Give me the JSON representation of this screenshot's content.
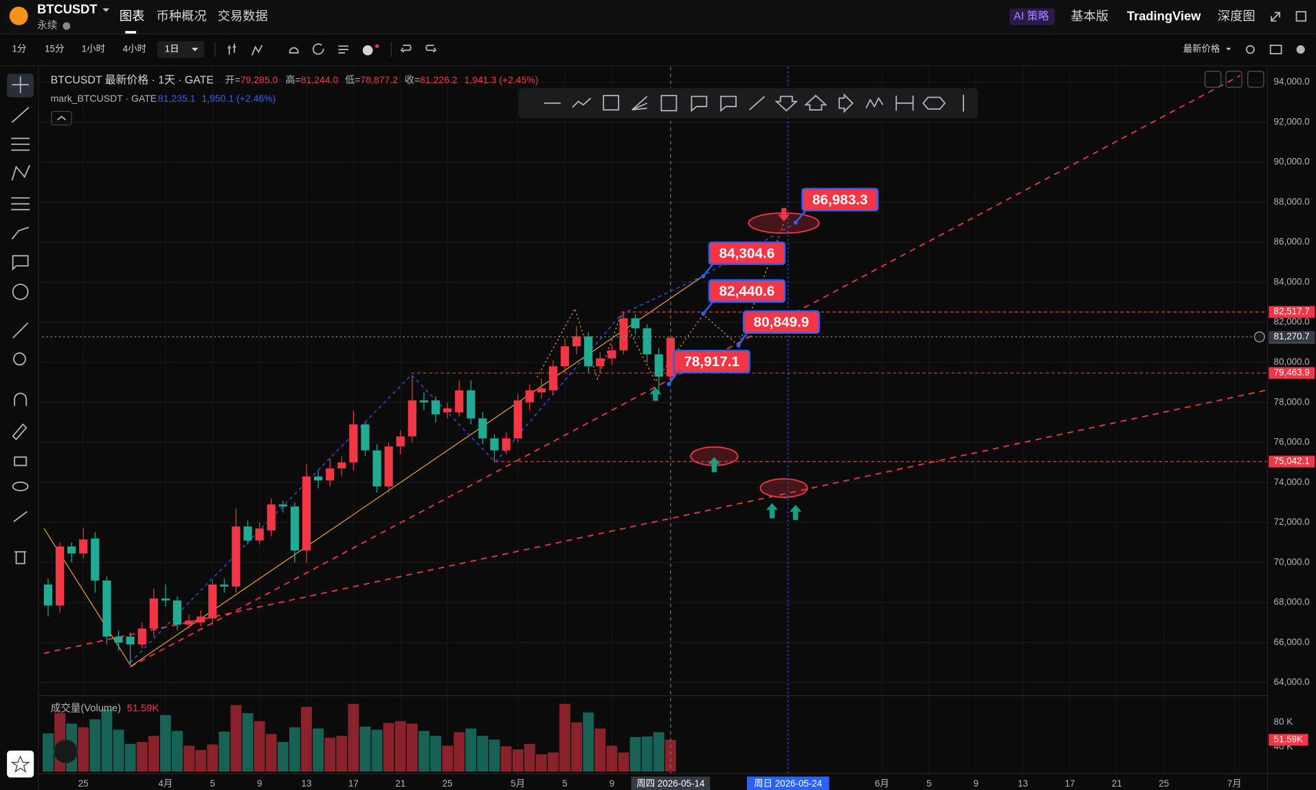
{
  "header": {
    "symbol": "BTCUSDT",
    "contract": "永续",
    "tabs": [
      "图表",
      "币种概况",
      "交易数据"
    ],
    "right": [
      "AI 策略",
      "基本版",
      "TradingView",
      "深度图"
    ]
  },
  "toolbar": {
    "intervals": [
      "1分",
      "15分",
      "1小时",
      "4小时",
      "1日"
    ],
    "price_type": "最新价格"
  },
  "legend": {
    "title": "BTCUSDT 最新价格 · 1天 · GATE",
    "items": [
      {
        "label": "开=",
        "value": "79,285.0"
      },
      {
        "label": "高=",
        "value": "81,244.0"
      },
      {
        "label": "低=",
        "value": "78,877.2"
      },
      {
        "label": "收=",
        "value": "81,226.2"
      }
    ],
    "change": "1,941.3 (+2.45%)",
    "mark_title": "mark_BTCUSDT · GATE",
    "mark_value": "81,235.1",
    "mark_change": "1,950.1 (+2.46%)"
  },
  "chart_data": {
    "type": "candlestick",
    "title": "BTCUSDT 最新价格 · 1天 · GATE",
    "x": [
      "2026-03-22",
      "2026-03-23",
      "2026-03-24",
      "2026-03-25",
      "2026-03-26",
      "2026-03-27",
      "2026-03-28",
      "2026-03-29",
      "2026-03-30",
      "2026-03-31",
      "2026-04-01",
      "2026-04-02",
      "2026-04-03",
      "2026-04-04",
      "2026-04-05",
      "2026-04-06",
      "2026-04-07",
      "2026-04-08",
      "2026-04-09",
      "2026-04-10",
      "2026-04-11",
      "2026-04-12",
      "2026-04-13",
      "2026-04-14",
      "2026-04-15",
      "2026-04-16",
      "2026-04-17",
      "2026-04-18",
      "2026-04-19",
      "2026-04-20",
      "2026-04-21",
      "2026-04-22",
      "2026-04-23",
      "2026-04-24",
      "2026-04-25",
      "2026-04-26",
      "2026-04-27",
      "2026-04-28",
      "2026-04-29",
      "2026-04-30",
      "2026-05-01",
      "2026-05-02",
      "2026-05-03",
      "2026-05-04",
      "2026-05-05",
      "2026-05-06",
      "2026-05-07",
      "2026-05-08",
      "2026-05-09",
      "2026-05-10",
      "2026-05-11",
      "2026-05-12",
      "2026-05-13",
      "2026-05-14"
    ],
    "open": [
      68900,
      67850,
      70800,
      70450,
      71200,
      69100,
      66300,
      66300,
      65900,
      66700,
      68200,
      68100,
      66900,
      67000,
      67200,
      68900,
      68800,
      71800,
      71100,
      71600,
      72900,
      72800,
      70600,
      74300,
      74100,
      74700,
      75000,
      76900,
      75600,
      73800,
      75800,
      76300,
      78100,
      78100,
      77500,
      77500,
      78600,
      77200,
      76200,
      75600,
      76200,
      78000,
      78500,
      78600,
      79800,
      80800,
      81300,
      79800,
      80200,
      80600,
      82200,
      81700,
      80400,
      79285
    ],
    "high": [
      69200,
      71000,
      71000,
      71700,
      71500,
      69300,
      66600,
      66500,
      67000,
      68700,
      68900,
      68300,
      67400,
      67600,
      69100,
      69200,
      72700,
      72100,
      72000,
      73200,
      73100,
      73000,
      74900,
      74600,
      75200,
      75300,
      77600,
      77000,
      75900,
      76000,
      76600,
      79300,
      78500,
      78300,
      78000,
      79100,
      79100,
      77500,
      76400,
      76500,
      78400,
      78900,
      79200,
      80100,
      81200,
      81800,
      81500,
      80500,
      80900,
      82500,
      82400,
      81900,
      80700,
      81244
    ],
    "low": [
      67300,
      67500,
      70000,
      70200,
      68500,
      65900,
      65600,
      64900,
      65700,
      66300,
      67800,
      66600,
      66700,
      66800,
      66900,
      68500,
      68500,
      70900,
      70900,
      71300,
      72500,
      70000,
      70000,
      73700,
      73800,
      74300,
      74600,
      75300,
      73500,
      73500,
      75400,
      76000,
      77600,
      77000,
      77200,
      77300,
      76900,
      75900,
      75000,
      75400,
      76000,
      77600,
      78200,
      78400,
      79500,
      80400,
      79500,
      79500,
      79900,
      80400,
      81400,
      80000,
      78400,
      78877.2
    ],
    "close": [
      67850,
      70800,
      70450,
      71150,
      69100,
      66300,
      66000,
      65900,
      66700,
      68200,
      68100,
      66900,
      67100,
      67300,
      68900,
      68800,
      71800,
      71100,
      71700,
      72900,
      72800,
      70600,
      74300,
      74100,
      74700,
      75000,
      76900,
      75600,
      73800,
      75800,
      76300,
      78100,
      78000,
      77400,
      77700,
      78600,
      77200,
      76200,
      75600,
      76200,
      78100,
      78600,
      78700,
      79800,
      80800,
      81300,
      79800,
      80200,
      80600,
      82200,
      81700,
      80400,
      79285,
      81226.2
    ],
    "up_color": "#f23645",
    "down_color": "#22ab94",
    "xlim": [
      "2026-03-21",
      "2026-07-04"
    ],
    "xticks": [
      {
        "value": "2026-03-25",
        "label": "25"
      },
      {
        "value": "2026-04-01",
        "label": "4月"
      },
      {
        "value": "2026-04-05",
        "label": "5"
      },
      {
        "value": "2026-04-09",
        "label": "9"
      },
      {
        "value": "2026-04-13",
        "label": "13"
      },
      {
        "value": "2026-04-17",
        "label": "17"
      },
      {
        "value": "2026-04-21",
        "label": "21"
      },
      {
        "value": "2026-04-25",
        "label": "25"
      },
      {
        "value": "2026-05-01",
        "label": "5月"
      },
      {
        "value": "2026-05-05",
        "label": "5"
      },
      {
        "value": "2026-05-09",
        "label": "9"
      },
      {
        "value": "2026-06-01",
        "label": "6月"
      },
      {
        "value": "2026-06-05",
        "label": "5"
      },
      {
        "value": "2026-06-09",
        "label": "9"
      },
      {
        "value": "2026-06-13",
        "label": "13"
      },
      {
        "value": "2026-06-17",
        "label": "17"
      },
      {
        "value": "2026-06-21",
        "label": "21"
      },
      {
        "value": "2026-06-25",
        "label": "25"
      },
      {
        "value": "2026-07-01",
        "label": "7月"
      }
    ],
    "x_tags": [
      {
        "value": "2026-05-14",
        "label": "周四 2026-05-14",
        "color": "#363a45"
      },
      {
        "value": "2026-05-24",
        "label": "周日 2026-05-24",
        "color": "#2962ff"
      }
    ],
    "ylim": [
      63410,
      94750
    ],
    "yticks": [
      {
        "value": 64000,
        "label": "64,000.0"
      },
      {
        "value": 66000,
        "label": "66,000.0"
      },
      {
        "value": 68000,
        "label": "68,000.0"
      },
      {
        "value": 70000,
        "label": "70,000.0"
      },
      {
        "value": 72000,
        "label": "72,000.0"
      },
      {
        "value": 74000,
        "label": "74,000.0"
      },
      {
        "value": 76000,
        "label": "76,000.0"
      },
      {
        "value": 78000,
        "label": "78,000.0"
      },
      {
        "value": 80000,
        "label": "80,000.0"
      },
      {
        "value": 82000,
        "label": "82,000.0"
      },
      {
        "value": 84000,
        "label": "84,000.0"
      },
      {
        "value": 86000,
        "label": "86,000.0"
      },
      {
        "value": 88000,
        "label": "88,000.0"
      },
      {
        "value": 90000,
        "label": "90,000.0"
      },
      {
        "value": 92000,
        "label": "92,000.0"
      },
      {
        "value": 94000,
        "label": "94,000.0"
      }
    ],
    "grid": true,
    "price_lines": [
      {
        "value": 82517.7,
        "label": "82,517.7",
        "color": "#f23645"
      },
      {
        "value": 81235.1,
        "label": "81,235.1",
        "color": "#2962ff"
      },
      {
        "value": 81270.7,
        "label": "81,270.7",
        "color": "#363a45"
      },
      {
        "value": 79463.9,
        "label": "79,463.9",
        "color": "#f23645"
      },
      {
        "value": 75042.1,
        "label": "75,042.1",
        "color": "#f23645"
      }
    ],
    "annotations": [
      {
        "value": 86983.3,
        "label": "86,983.3"
      },
      {
        "value": 84304.6,
        "label": "84,304.6"
      },
      {
        "value": 82440.6,
        "label": "82,440.6"
      },
      {
        "value": 80849.9,
        "label": "80,849.9"
      },
      {
        "value": 78917.1,
        "label": "78,917.1"
      }
    ],
    "volume": {
      "name": "成交量(Volume)",
      "values": [
        62000,
        95000,
        78000,
        72000,
        85000,
        101000,
        68000,
        45000,
        48000,
        58000,
        92000,
        66000,
        42000,
        35000,
        44000,
        65000,
        108000,
        95000,
        82000,
        61000,
        48000,
        72000,
        105000,
        70000,
        55000,
        58000,
        110000,
        73000,
        68000,
        79000,
        82000,
        78000,
        66000,
        58000,
        42000,
        64000,
        70000,
        58000,
        52000,
        41000,
        36000,
        45000,
        28000,
        31000,
        110000,
        80000,
        96000,
        70000,
        42000,
        31000,
        56000,
        57000,
        64000,
        51590
      ],
      "value_labels": [
        null,
        null,
        null,
        null,
        null,
        null,
        null,
        null,
        null,
        null,
        null,
        null,
        null,
        null,
        null,
        null,
        null,
        null,
        null,
        null,
        null,
        null,
        null,
        null,
        null,
        null,
        null,
        null,
        null,
        null,
        null,
        null,
        null,
        null,
        null,
        null,
        null,
        null,
        null,
        null,
        null,
        null,
        null,
        null,
        null,
        null,
        null,
        null,
        null,
        null,
        null,
        null,
        null,
        "51.59K"
      ],
      "ylim": [
        0,
        120000
      ],
      "yticks": [
        {
          "value": 40000,
          "label": "40 K"
        },
        {
          "value": 80000,
          "label": "80 K"
        }
      ]
    }
  }
}
